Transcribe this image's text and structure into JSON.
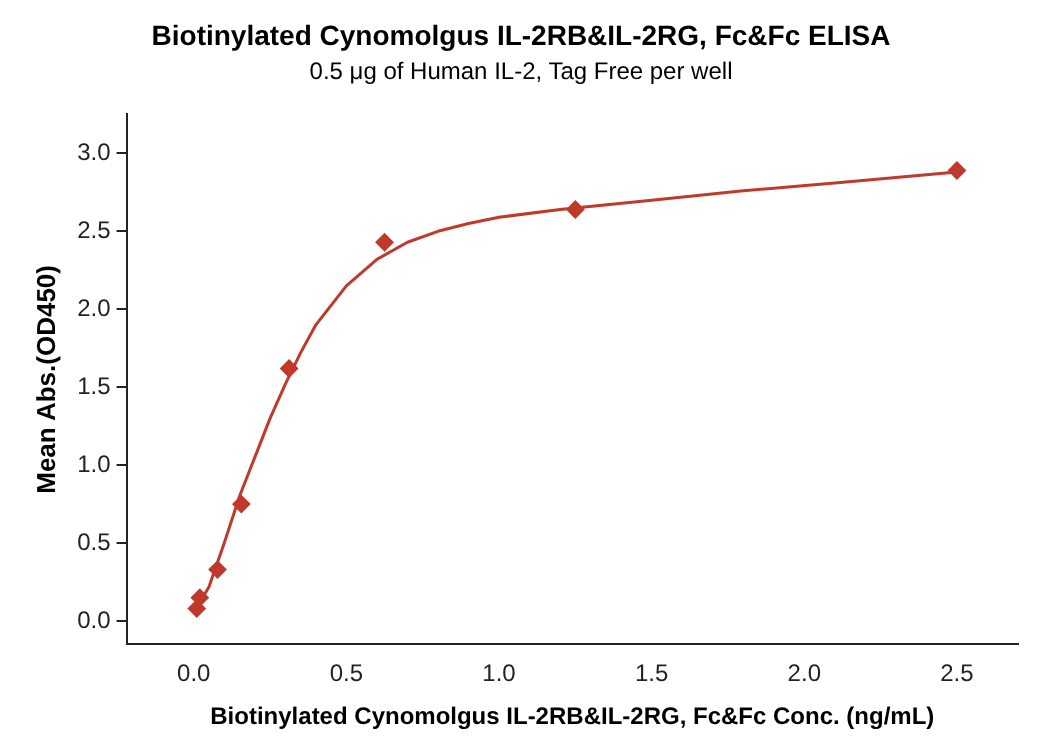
{
  "chart_data": {
    "type": "scatter",
    "title": "Biotinylated Cynomolgus IL-2RB&IL-2RG, Fc&Fc ELISA",
    "subtitle": "0.5 μg of Human IL-2, Tag Free per well",
    "xlabel": "Biotinylated Cynomolgus IL-2RB&IL-2RG, Fc&Fc Conc. (ng/mL)",
    "ylabel": "Mean Abs.(OD450)",
    "series": [
      {
        "type": "scatter",
        "color": "#c0392b",
        "marker": "diamond",
        "x": [
          0.01,
          0.02,
          0.078,
          0.156,
          0.3125,
          0.625,
          1.25,
          2.5
        ],
        "values": [
          0.08,
          0.15,
          0.33,
          0.75,
          1.62,
          2.43,
          2.64,
          2.89
        ]
      },
      {
        "type": "line",
        "color": "#c0392b",
        "marker": "none",
        "line_style": "solid",
        "x": [
          0,
          0.05,
          0.1,
          0.15,
          0.2,
          0.25,
          0.3,
          0.35,
          0.4,
          0.5,
          0.6,
          0.7,
          0.8,
          0.9,
          1.0,
          1.2,
          1.5,
          1.8,
          2.1,
          2.5
        ],
        "values": [
          0.05,
          0.22,
          0.5,
          0.8,
          1.05,
          1.3,
          1.52,
          1.72,
          1.9,
          2.15,
          2.32,
          2.43,
          2.5,
          2.55,
          2.59,
          2.64,
          2.7,
          2.76,
          2.81,
          2.88
        ]
      }
    ],
    "xlim": [
      -0.22,
      2.7
    ],
    "ylim": [
      -0.15,
      3.25
    ],
    "xticks": [
      {
        "value": 0,
        "label": "0.0"
      },
      {
        "value": 0.5,
        "label": "0.5"
      },
      {
        "value": 1,
        "label": "1.0"
      },
      {
        "value": 1.5,
        "label": "1.5"
      },
      {
        "value": 2,
        "label": "2.0"
      },
      {
        "value": 2.5,
        "label": "2.5"
      }
    ],
    "yticks": [
      {
        "value": 0,
        "label": "0.0"
      },
      {
        "value": 0.5,
        "label": "0.5"
      },
      {
        "value": 1,
        "label": "1.0"
      },
      {
        "value": 1.5,
        "label": "1.5"
      },
      {
        "value": 2,
        "label": "2.0"
      },
      {
        "value": 2.5,
        "label": "2.5"
      },
      {
        "value": 3,
        "label": "3.0"
      }
    ],
    "grid": false,
    "legend": false
  }
}
